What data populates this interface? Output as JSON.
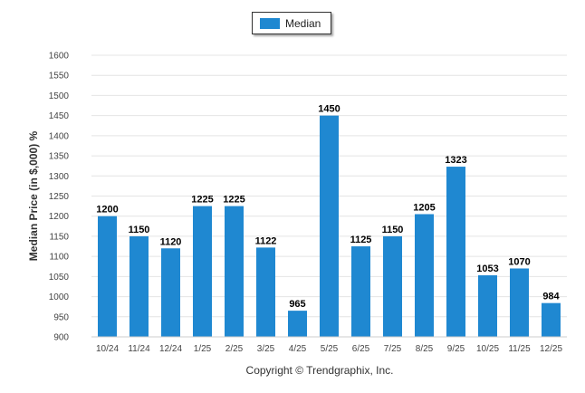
{
  "chart_data": {
    "type": "bar",
    "categories": [
      "10/24",
      "11/24",
      "12/24",
      "1/25",
      "2/25",
      "3/25",
      "4/25",
      "5/25",
      "6/25",
      "7/25",
      "8/25",
      "9/25",
      "10/25",
      "11/25",
      "12/25"
    ],
    "series": [
      {
        "name": "Median",
        "values": [
          1200,
          1150,
          1120,
          1225,
          1225,
          1122,
          965,
          1450,
          1125,
          1150,
          1205,
          1323,
          1053,
          1070,
          984
        ],
        "color": "#1f88d1"
      }
    ],
    "title": "",
    "xlabel": "",
    "ylabel": "Median Price (in $,000) %",
    "ylim": [
      900,
      1600
    ],
    "yticks": [
      900,
      950,
      1000,
      1050,
      1100,
      1150,
      1200,
      1250,
      1300,
      1350,
      1400,
      1450,
      1500,
      1550,
      1600
    ],
    "grid": true,
    "legend_position": "top-center",
    "data_labels": true
  },
  "footer": {
    "copyright": "Copyright © Trendgraphix, Inc."
  },
  "colors": {
    "bar": "#1f88d1",
    "grid": "#e4e4e4",
    "axis": "#cccccc"
  }
}
